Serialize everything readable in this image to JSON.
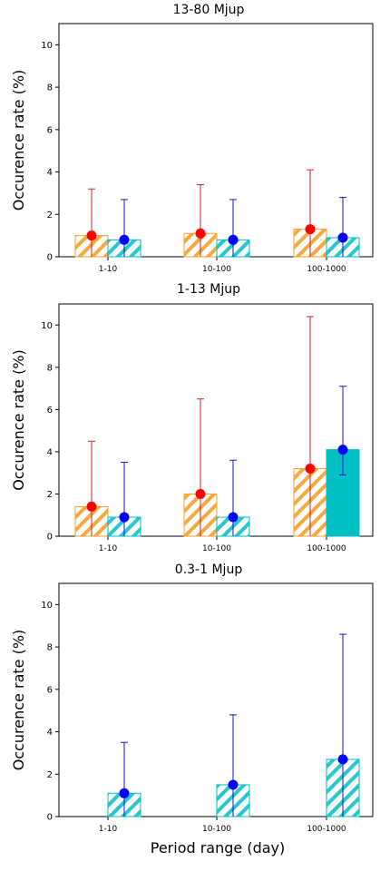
{
  "xlabel": "Period range (day)",
  "colors": {
    "orange": "#f5a02a",
    "cyan": "#00bfc4",
    "red": "#ff0000",
    "blue": "#0000ff",
    "red_err": "#cc2222",
    "blue_err": "#1515cc"
  },
  "chart_data": [
    {
      "type": "bar",
      "title": "13-80 Mjup",
      "ylabel": "Occurence rate (%)",
      "categories": [
        "1-10",
        "10-100",
        "100-1000"
      ],
      "ylim": [
        0,
        11
      ],
      "yticks": [
        0,
        2,
        4,
        6,
        8,
        10
      ],
      "series": [
        {
          "color": "orange",
          "hatched": [
            true,
            true,
            true
          ],
          "values": [
            1.0,
            1.1,
            1.3
          ],
          "marker_color": "red",
          "markers": [
            1.0,
            1.1,
            1.3
          ],
          "err_low": [
            0,
            0,
            0
          ],
          "err_high": [
            3.2,
            3.4,
            4.1
          ]
        },
        {
          "color": "cyan",
          "hatched": [
            true,
            true,
            true
          ],
          "values": [
            0.8,
            0.8,
            0.9
          ],
          "marker_color": "blue",
          "markers": [
            0.8,
            0.8,
            0.9
          ],
          "err_low": [
            0,
            0,
            0
          ],
          "err_high": [
            2.7,
            2.7,
            2.8
          ]
        }
      ]
    },
    {
      "type": "bar",
      "title": "1-13 Mjup",
      "ylabel": "Occurence rate (%)",
      "categories": [
        "1-10",
        "10-100",
        "100-1000"
      ],
      "ylim": [
        0,
        11
      ],
      "yticks": [
        0,
        2,
        4,
        6,
        8,
        10
      ],
      "series": [
        {
          "color": "orange",
          "hatched": [
            true,
            true,
            true
          ],
          "values": [
            1.4,
            2.0,
            3.2
          ],
          "marker_color": "red",
          "markers": [
            1.4,
            2.0,
            3.2
          ],
          "err_low": [
            0,
            0,
            0
          ],
          "err_high": [
            4.5,
            6.5,
            10.4
          ]
        },
        {
          "color": "cyan",
          "hatched": [
            true,
            true,
            false
          ],
          "values": [
            0.9,
            0.9,
            4.1
          ],
          "marker_color": "blue",
          "markers": [
            0.9,
            0.9,
            4.1
          ],
          "err_low": [
            0,
            0,
            2.9
          ],
          "err_high": [
            3.5,
            3.6,
            7.1
          ]
        }
      ]
    },
    {
      "type": "bar",
      "title": "0.3-1 Mjup",
      "ylabel": "Occurence rate (%)",
      "categories": [
        "1-10",
        "10-100",
        "100-1000"
      ],
      "ylim": [
        0,
        11
      ],
      "yticks": [
        0,
        2,
        4,
        6,
        8,
        10
      ],
      "series": [
        {
          "color": "cyan",
          "hatched": [
            true,
            true,
            true
          ],
          "values": [
            1.1,
            1.5,
            2.7
          ],
          "marker_color": "blue",
          "markers": [
            1.1,
            1.5,
            2.7
          ],
          "err_low": [
            0,
            0,
            0
          ],
          "err_high": [
            3.5,
            4.8,
            8.6
          ],
          "slot": 1
        }
      ]
    }
  ]
}
